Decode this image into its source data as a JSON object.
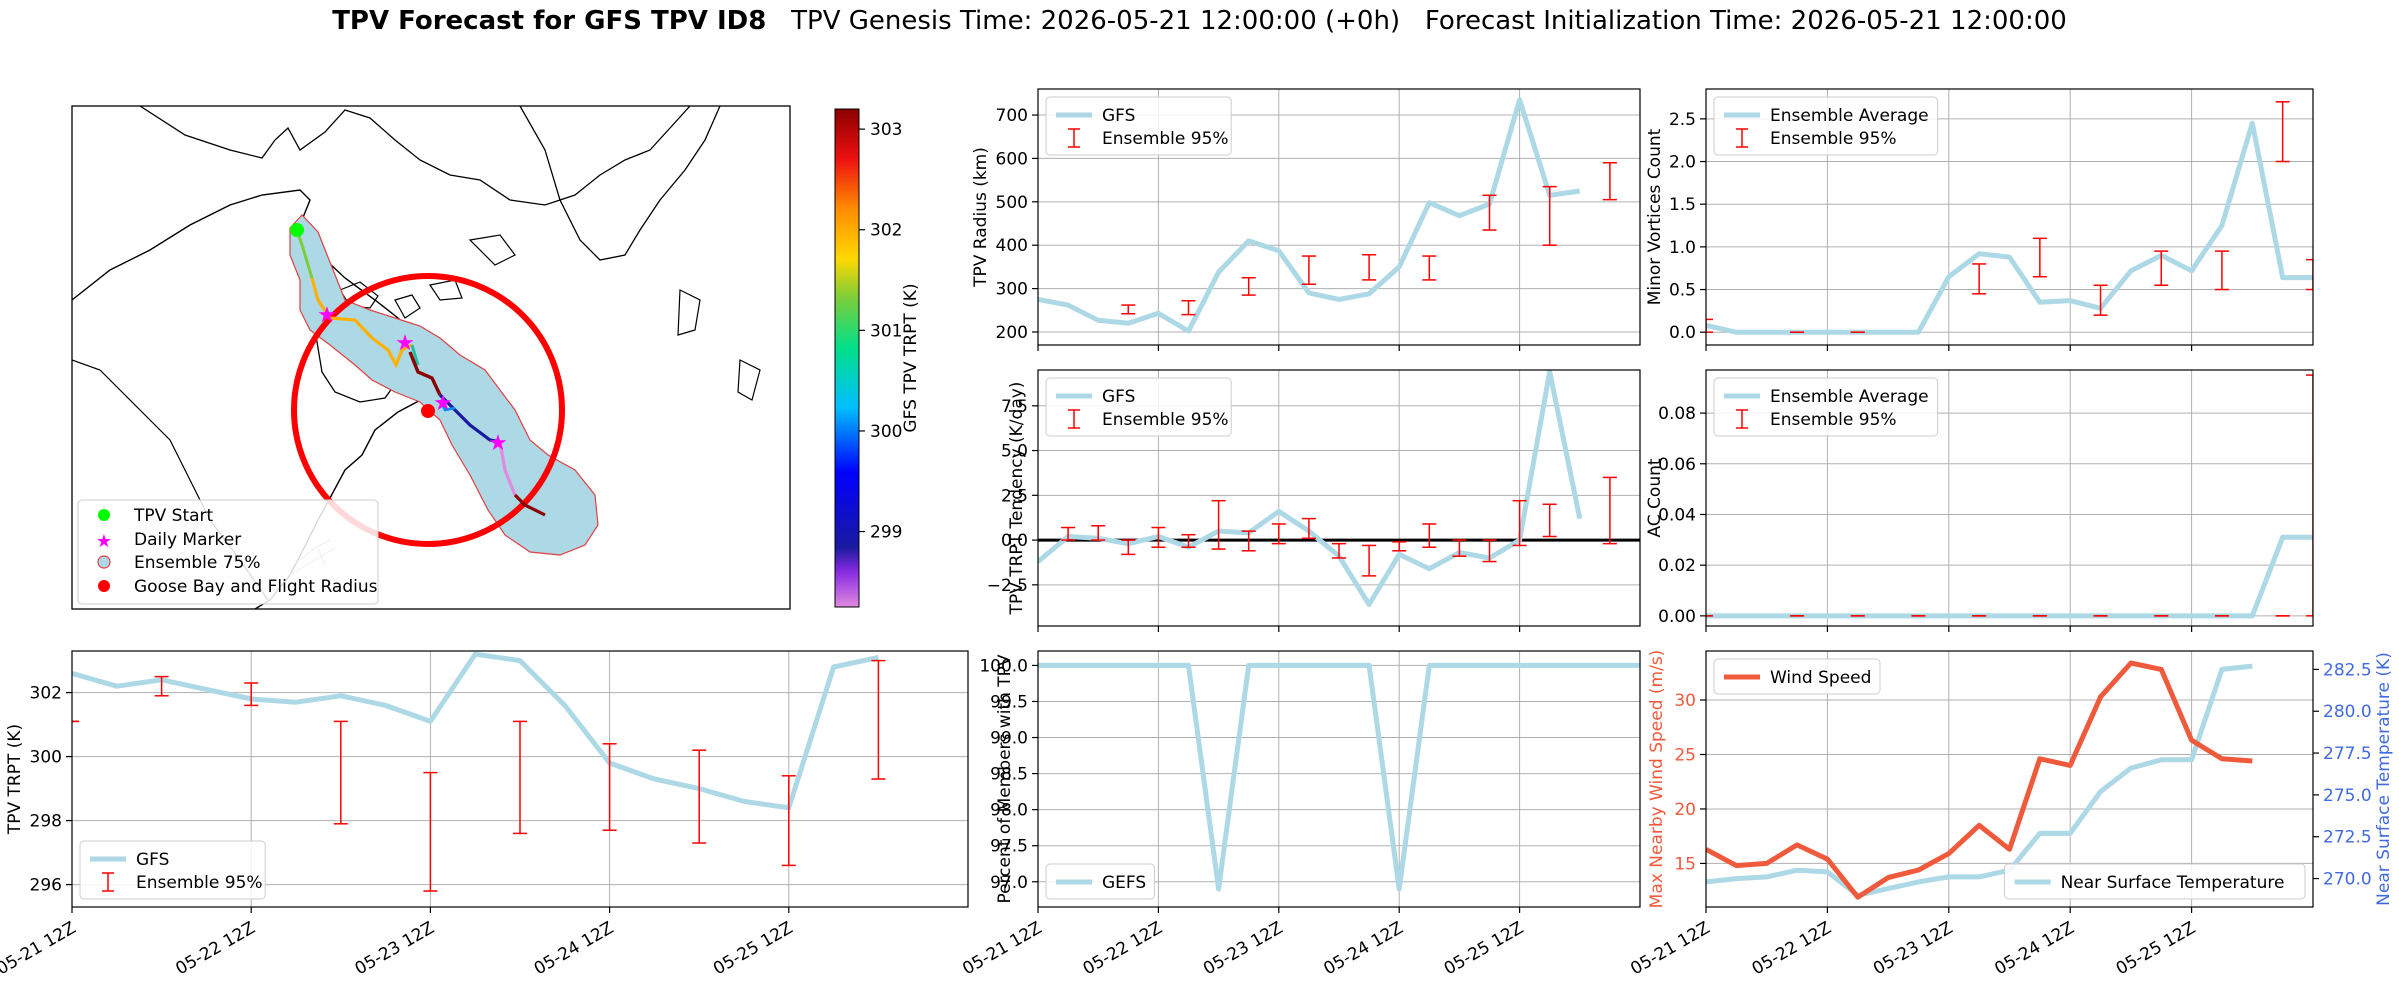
{
  "title": {
    "bold": "TPV Forecast for GFS TPV ID8",
    "genesis": "TPV Genesis Time: 2026-05-21 12:00:00 (+0h)",
    "init": "Forecast Initialization Time: 2026-05-21 12:00:00"
  },
  "colors": {
    "gfs": "#add8e6",
    "ensemble": "#ff0000",
    "wind": "#f05a3c",
    "temp_axis": "#4169e1",
    "wind_axis": "#f05a3c"
  },
  "date_ticks": [
    "05-21 12Z",
    "05-22 12Z",
    "05-23 12Z",
    "05-24 12Z",
    "05-25 12Z"
  ],
  "chart_data": [
    {
      "id": "map",
      "type": "map",
      "colorbar": {
        "label": "GFS TPV TRPT (K)",
        "ticks": [
          299,
          300,
          301,
          302,
          303
        ],
        "range": [
          298.25,
          303.2
        ]
      },
      "legend": [
        "TPV Start",
        "Daily Marker",
        "Ensemble 75%",
        "Goose Bay and Flight Radius"
      ],
      "legend_placement": "lower-left"
    },
    {
      "id": "radius",
      "type": "line",
      "ylabel": "TPV Radius (km)",
      "ylim": [
        170,
        760
      ],
      "yticks": [
        200,
        300,
        400,
        500,
        600,
        700
      ],
      "xlim": [
        0,
        20
      ],
      "gfs_name": "GFS",
      "ens_name": "Ensemble 95%",
      "gfs": [
        275,
        262,
        227,
        220,
        243,
        202,
        338,
        410,
        387,
        290,
        275,
        288,
        350,
        498,
        468,
        495,
        735,
        515,
        525
      ],
      "ens": [
        [
          3,
          242,
          262
        ],
        [
          5,
          240,
          272
        ],
        [
          7,
          285,
          325
        ],
        [
          9,
          310,
          375
        ],
        [
          11,
          320,
          378
        ],
        [
          13,
          320,
          375
        ],
        [
          15,
          435,
          515
        ],
        [
          17,
          400,
          535
        ],
        [
          19,
          505,
          590
        ]
      ]
    },
    {
      "id": "vortices",
      "type": "line",
      "ylabel": "Minor Vortices Count",
      "ylim": [
        -0.15,
        2.85
      ],
      "yticks": [
        0.0,
        0.5,
        1.0,
        1.5,
        2.0,
        2.5
      ],
      "yticklabels": [
        "0.0",
        "0.5",
        "1.0",
        "1.5",
        "2.0",
        "2.5"
      ],
      "xlim": [
        0,
        20
      ],
      "gfs_name": "Ensemble Average",
      "ens_name": "Ensemble 95%",
      "gfs": [
        0.08,
        0.0,
        0.0,
        0.0,
        0.0,
        0.0,
        0.0,
        0.0,
        0.65,
        0.92,
        0.88,
        0.35,
        0.37,
        0.28,
        0.72,
        0.9,
        0.72,
        1.25,
        2.45,
        0.64,
        0.64
      ],
      "ens": [
        [
          0,
          0.0,
          0.15
        ],
        [
          3,
          0.0,
          0.0
        ],
        [
          5,
          0.0,
          0.0
        ],
        [
          9,
          0.45,
          0.8
        ],
        [
          11,
          0.65,
          1.1
        ],
        [
          13,
          0.2,
          0.55
        ],
        [
          15,
          0.55,
          0.95
        ],
        [
          17,
          0.5,
          0.95
        ],
        [
          19,
          2.0,
          2.7
        ],
        [
          20,
          0.5,
          0.85
        ]
      ]
    },
    {
      "id": "tendency",
      "type": "line",
      "ylabel": "TPV TRPT Tendency (K/day)",
      "ylim": [
        -4.8,
        9.5
      ],
      "yticks": [
        -2.5,
        0.0,
        2.5,
        5.0,
        7.5
      ],
      "yticklabels": [
        "−2.5",
        "0.0",
        "2.5",
        "5.0",
        "7.5"
      ],
      "xlim": [
        0,
        20
      ],
      "gfs_name": "GFS",
      "ens_name": "Ensemble 95%",
      "gfs": [
        -1.2,
        0.2,
        0.1,
        -0.2,
        0.2,
        -0.4,
        0.5,
        0.4,
        1.6,
        0.5,
        -0.9,
        -3.6,
        -0.8,
        -1.6,
        -0.7,
        -1.0,
        0.0,
        9.4,
        1.2
      ],
      "ens": [
        [
          1,
          0.0,
          0.7
        ],
        [
          2,
          0.0,
          0.8
        ],
        [
          3,
          -0.8,
          0.0
        ],
        [
          4,
          -0.4,
          0.7
        ],
        [
          5,
          -0.4,
          0.3
        ],
        [
          6,
          -0.5,
          2.2
        ],
        [
          7,
          -0.6,
          0.5
        ],
        [
          8,
          -0.2,
          0.9
        ],
        [
          9,
          0.1,
          1.2
        ],
        [
          10,
          -1.0,
          -0.2
        ],
        [
          11,
          -2.0,
          -0.3
        ],
        [
          12,
          -0.6,
          -0.1
        ],
        [
          13,
          -0.4,
          0.9
        ],
        [
          14,
          -0.9,
          0.0
        ],
        [
          15,
          -1.2,
          0.0
        ],
        [
          16,
          -0.3,
          2.2
        ],
        [
          17,
          0.2,
          2.0
        ],
        [
          19,
          -0.2,
          3.5
        ]
      ]
    },
    {
      "id": "ac",
      "type": "line",
      "ylabel": "AC Count",
      "ylim": [
        -0.004,
        0.097
      ],
      "yticks": [
        0.0,
        0.02,
        0.04,
        0.06,
        0.08
      ],
      "yticklabels": [
        "0.00",
        "0.02",
        "0.04",
        "0.06",
        "0.08"
      ],
      "xlim": [
        0,
        20
      ],
      "gfs_name": "Ensemble Average",
      "ens_name": "Ensemble 95%",
      "gfs": [
        0,
        0,
        0,
        0,
        0,
        0,
        0,
        0,
        0,
        0,
        0,
        0,
        0,
        0,
        0,
        0,
        0,
        0,
        0,
        0.031,
        0.031
      ],
      "ens": [
        [
          0,
          0.0,
          0.0
        ],
        [
          3,
          0.0,
          0.0
        ],
        [
          5,
          0.0,
          0.0
        ],
        [
          7,
          0.0,
          0.0
        ],
        [
          9,
          0.0,
          0.0
        ],
        [
          11,
          0.0,
          0.0
        ],
        [
          13,
          0.0,
          0.0
        ],
        [
          15,
          0.0,
          0.0
        ],
        [
          17,
          0.0,
          0.0
        ],
        [
          19,
          0.0,
          0.0
        ],
        [
          20,
          0.0,
          0.095
        ]
      ]
    },
    {
      "id": "trpt",
      "type": "line",
      "ylabel": "TPV TRPT (K)",
      "ylim": [
        295.3,
        303.3
      ],
      "yticks": [
        296,
        298,
        300,
        302
      ],
      "xlim": [
        0,
        20
      ],
      "gfs_name": "GFS",
      "ens_name": "Ensemble 95%",
      "gfs": [
        302.6,
        302.2,
        302.4,
        302.1,
        301.8,
        301.7,
        301.9,
        301.6,
        301.1,
        303.2,
        303.0,
        301.6,
        299.8,
        299.3,
        299.0,
        298.6,
        298.4,
        302.8,
        303.1
      ],
      "ens": [
        [
          0,
          301.1,
          301.1
        ],
        [
          2,
          301.9,
          302.5
        ],
        [
          4,
          301.6,
          302.3
        ],
        [
          6,
          297.9,
          301.1
        ],
        [
          8,
          295.8,
          299.5
        ],
        [
          10,
          297.6,
          301.1
        ],
        [
          12,
          297.7,
          300.4
        ],
        [
          14,
          297.3,
          300.2
        ],
        [
          16,
          296.6,
          299.4
        ],
        [
          18,
          299.3,
          303.0
        ]
      ]
    },
    {
      "id": "members",
      "type": "line",
      "ylabel": "Percent of Members with TPV",
      "ylim": [
        96.65,
        100.2
      ],
      "yticks": [
        97.0,
        97.5,
        98.0,
        98.5,
        99.0,
        99.5,
        100.0
      ],
      "yticklabels": [
        "97.0",
        "97.5",
        "98.0",
        "98.5",
        "99.0",
        "99.5",
        "100.0"
      ],
      "xlim": [
        0,
        20
      ],
      "gfs_name": "GEFS",
      "gfs": [
        100,
        100,
        100,
        100,
        100,
        100,
        96.9,
        100,
        100,
        100,
        100,
        100,
        96.9,
        100,
        100,
        100,
        100,
        100,
        100,
        100,
        100
      ]
    },
    {
      "id": "wind_temp",
      "type": "line",
      "ylabel": "Max Nearby Wind Speed (m/s)",
      "y2label": "Near Surface Temperature (K)",
      "ylim": [
        11,
        34.5
      ],
      "yticks": [
        15,
        20,
        25,
        30
      ],
      "y2lim": [
        268.3,
        283.6
      ],
      "y2ticks": [
        270.0,
        272.5,
        275.0,
        277.5,
        280.0,
        282.5
      ],
      "y2ticklabels": [
        "270.0",
        "272.5",
        "275.0",
        "277.5",
        "280.0",
        "282.5"
      ],
      "xlim": [
        0,
        20
      ],
      "wind_name": "Wind Speed",
      "temp_name": "Near Surface Temperature",
      "wind": [
        16.3,
        14.8,
        15.0,
        16.7,
        15.4,
        11.9,
        13.7,
        14.4,
        15.9,
        18.5,
        16.3,
        24.6,
        24.0,
        30.3,
        33.4,
        32.8,
        26.3,
        24.6,
        24.4
      ],
      "temp": [
        269.8,
        270.0,
        270.1,
        270.5,
        270.4,
        269.0,
        269.4,
        269.8,
        270.1,
        270.1,
        270.5,
        272.7,
        272.7,
        275.2,
        276.6,
        277.1,
        277.1,
        282.5,
        282.7
      ]
    }
  ]
}
